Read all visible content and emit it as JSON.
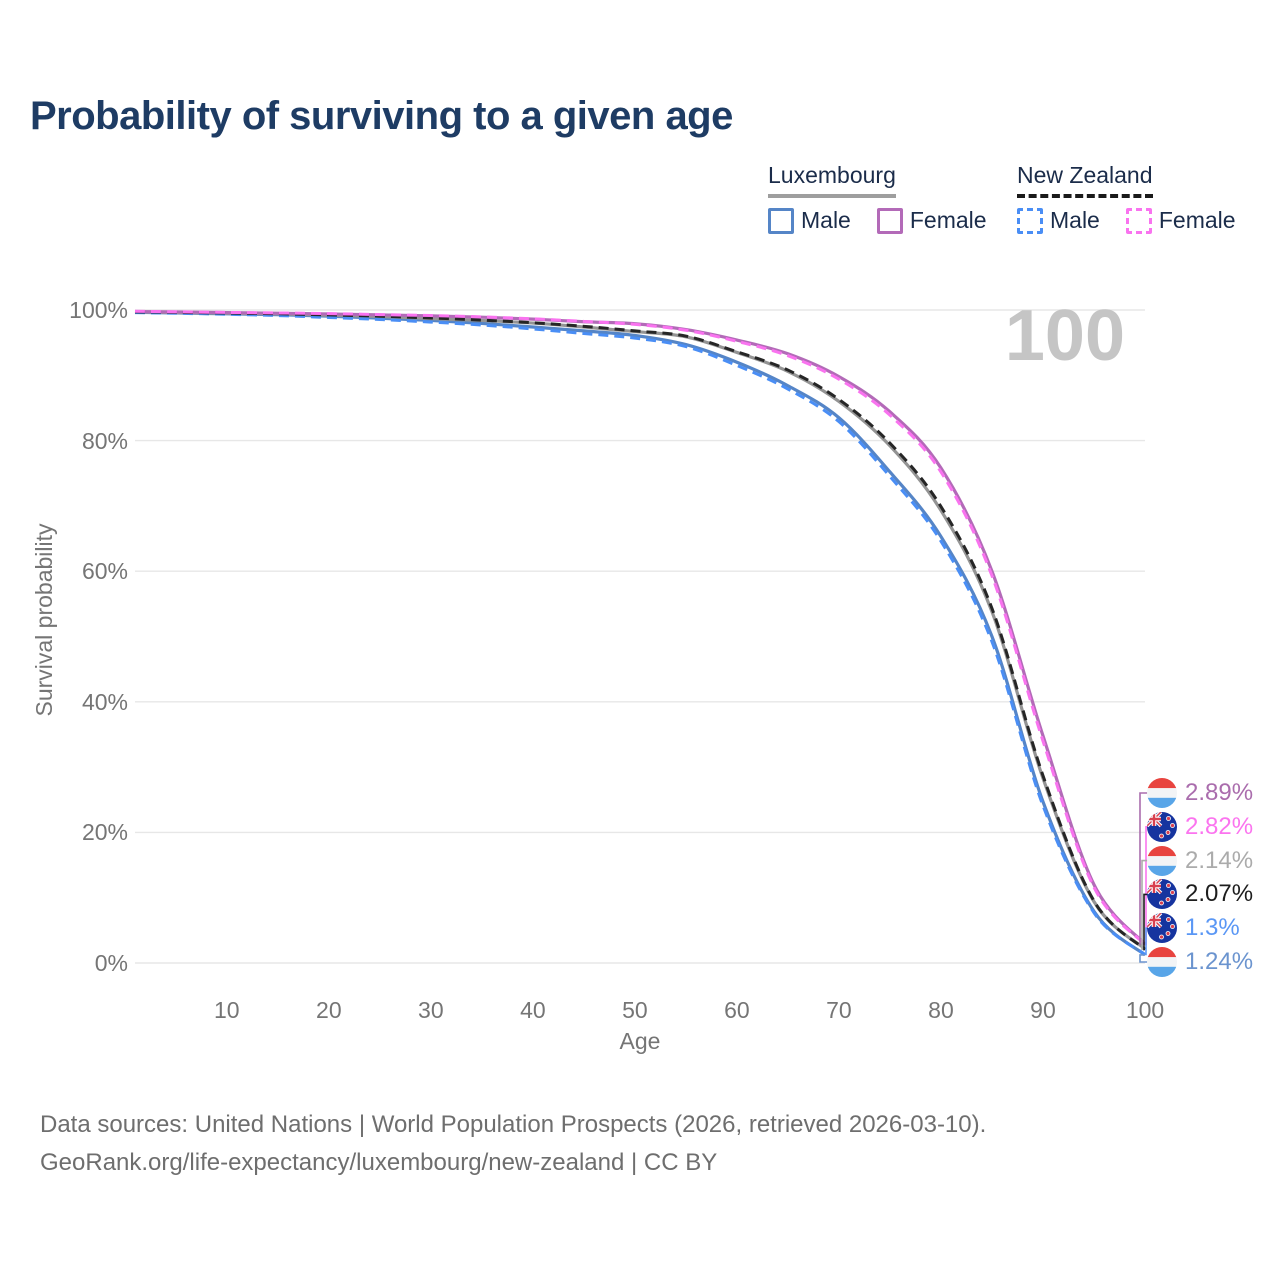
{
  "title": "Probability of surviving to a given age",
  "legend": {
    "groups": [
      {
        "id": "luxembourg",
        "label": "Luxembourg",
        "line_style": "solid",
        "underline_color": "#9e9e9e",
        "items": [
          {
            "label": "Male",
            "color": "#5585c7"
          },
          {
            "label": "Female",
            "color": "#b36ab8"
          }
        ]
      },
      {
        "id": "new-zealand",
        "label": "New Zealand",
        "line_style": "dashed",
        "underline_color": "#1a1a1a",
        "items": [
          {
            "label": "Male",
            "color": "#4a8ef5"
          },
          {
            "label": "Female",
            "color": "#f973ef"
          }
        ]
      }
    ]
  },
  "chart_data": {
    "type": "line",
    "title": "Probability of surviving to a given age",
    "xlabel": "Age",
    "ylabel": "Survival probability",
    "xlim": [
      1,
      100
    ],
    "ylim": [
      0,
      100
    ],
    "grid": "horizontal",
    "legend_position": "top-right",
    "annotation": "100",
    "x_ticks": [
      10,
      20,
      30,
      40,
      50,
      60,
      70,
      80,
      90,
      100
    ],
    "y_ticks": [
      {
        "value": 0,
        "label": "0%"
      },
      {
        "value": 20,
        "label": "20%"
      },
      {
        "value": 40,
        "label": "40%"
      },
      {
        "value": 60,
        "label": "60%"
      },
      {
        "value": 80,
        "label": "80%"
      },
      {
        "value": 100,
        "label": "100%"
      }
    ],
    "ages": [
      1,
      5,
      10,
      15,
      20,
      25,
      30,
      35,
      40,
      45,
      50,
      55,
      60,
      65,
      70,
      75,
      80,
      85,
      90,
      95,
      100
    ],
    "series": [
      {
        "id": "lux_male",
        "name": "Luxembourg Male",
        "color": "#5585c7",
        "dash": false,
        "values": [
          99.65,
          99.55,
          99.42,
          99.28,
          99.05,
          98.75,
          98.4,
          97.95,
          97.4,
          96.8,
          96.1,
          94.7,
          92.0,
          88.4,
          83.5,
          75.2,
          65.3,
          50.0,
          24.7,
          7.9,
          1.24
        ]
      },
      {
        "id": "lux_total",
        "name": "Luxembourg Both sexes",
        "color": "#949494",
        "dash": false,
        "values": [
          99.7,
          99.62,
          99.5,
          99.4,
          99.2,
          99.0,
          98.7,
          98.4,
          98.0,
          97.4,
          96.7,
          95.9,
          93.5,
          90.6,
          86.0,
          79.2,
          69.3,
          53.8,
          28.3,
          9.4,
          2.14
        ]
      },
      {
        "id": "lux_female",
        "name": "Luxembourg Female",
        "color": "#b36ab8",
        "dash": false,
        "values": [
          99.75,
          99.7,
          99.6,
          99.5,
          99.4,
          99.25,
          99.1,
          98.9,
          98.6,
          98.2,
          97.9,
          97.0,
          95.4,
          93.3,
          89.8,
          84.4,
          75.8,
          60.0,
          34.8,
          12.0,
          2.89
        ]
      },
      {
        "id": "nz_male",
        "name": "New Zealand Male",
        "color": "#4a8ef5",
        "dash": true,
        "values": [
          99.6,
          99.5,
          99.35,
          99.15,
          98.85,
          98.55,
          98.15,
          97.7,
          97.1,
          96.4,
          95.7,
          94.4,
          91.5,
          87.9,
          82.9,
          74.5,
          64.6,
          49.2,
          24.1,
          7.7,
          1.3
        ]
      },
      {
        "id": "nz_total",
        "name": "New Zealand Both sexes",
        "color": "#262626",
        "dash": true,
        "values": [
          99.72,
          99.64,
          99.53,
          99.42,
          99.25,
          99.05,
          98.78,
          98.45,
          98.05,
          97.5,
          96.8,
          96.0,
          93.6,
          90.8,
          86.3,
          79.6,
          69.9,
          54.3,
          28.7,
          9.5,
          2.07
        ]
      },
      {
        "id": "nz_female",
        "name": "New Zealand Female",
        "color": "#f973ef",
        "dash": true,
        "values": [
          99.8,
          99.72,
          99.63,
          99.55,
          99.45,
          99.3,
          99.15,
          98.95,
          98.65,
          98.25,
          97.8,
          96.9,
          95.2,
          93.0,
          89.4,
          83.9,
          75.2,
          59.3,
          34.0,
          11.6,
          2.82
        ]
      }
    ],
    "end_labels": [
      {
        "series": "lux_female",
        "value": "2.89%",
        "color": "#aa6dad",
        "flag": "luxembourg"
      },
      {
        "series": "nz_female",
        "value": "2.82%",
        "color": "#fb74ef",
        "flag": "new-zealand"
      },
      {
        "series": "lux_total",
        "value": "2.14%",
        "color": "#ababab",
        "flag": "luxembourg"
      },
      {
        "series": "nz_total",
        "value": "2.07%",
        "color": "#1d1d1d",
        "flag": "new-zealand"
      },
      {
        "series": "nz_male",
        "value": "1.3%",
        "color": "#5a97f5",
        "flag": "new-zealand"
      },
      {
        "series": "lux_male",
        "value": "1.24%",
        "color": "#6b94cf",
        "flag": "luxembourg"
      }
    ]
  },
  "footer": {
    "line1": "Data sources: United Nations | World Population Prospects (2026, retrieved 2026-03-10).",
    "line2": "GeoRank.org/life-expectancy/luxembourg/new-zealand | CC BY"
  }
}
